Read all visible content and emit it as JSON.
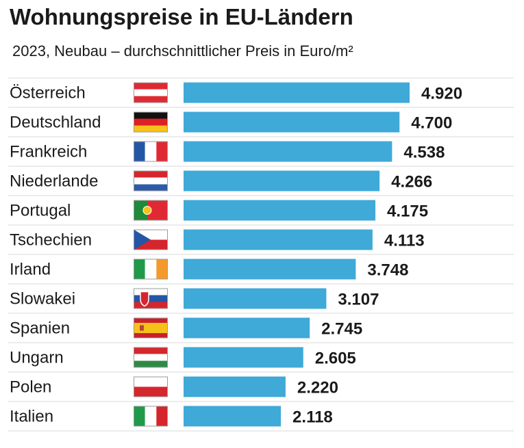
{
  "chart_data": {
    "type": "bar",
    "orientation": "horizontal",
    "title": "Wohnungspreise in EU-Ländern",
    "subtitle": "2023, Neubau – durchschnittlicher Preis in Euro/m²",
    "categories": [
      "Österreich",
      "Deutschland",
      "Frankreich",
      "Niederlande",
      "Portugal",
      "Tschechien",
      "Irland",
      "Slowakei",
      "Spanien",
      "Ungarn",
      "Polen",
      "Italien"
    ],
    "values": [
      4920,
      4700,
      4538,
      4266,
      4175,
      4113,
      3748,
      3107,
      2745,
      2605,
      2220,
      2118
    ],
    "value_labels": [
      "4.920",
      "4.700",
      "4.538",
      "4.266",
      "4.175",
      "4.113",
      "3.748",
      "3.107",
      "2.745",
      "2.605",
      "2.220",
      "2.118"
    ],
    "flags": [
      "austria-flag",
      "germany-flag",
      "france-flag",
      "netherlands-flag",
      "portugal-flag",
      "czech-flag",
      "ireland-flag",
      "slovakia-flag",
      "spain-flag",
      "hungary-flag",
      "poland-flag",
      "italy-flag"
    ],
    "xlim": [
      0,
      4920
    ],
    "grid": false,
    "legend": "none",
    "bar_color": "#3fa9d8",
    "separator_color": "#d9d9d9"
  }
}
